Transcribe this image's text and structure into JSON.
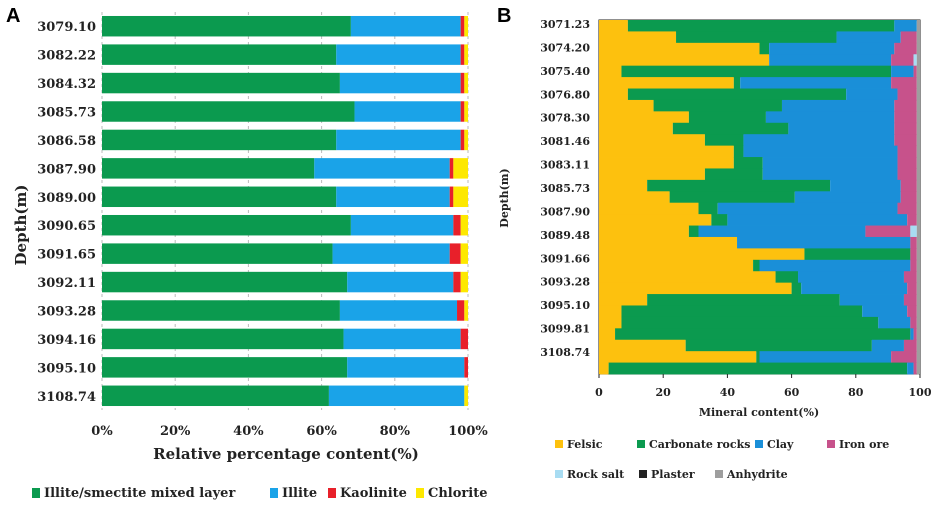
{
  "colors": {
    "green": "#0b9a4f",
    "blue": "#1aa3e8",
    "red": "#e8202a",
    "yellow": "#fde800",
    "orange": "#fdc10e",
    "clay_blue": "#1a8fd8",
    "pink": "#c7528b",
    "light_blue": "#a8dcf2",
    "dark": "#222222",
    "gray": "#9e9e9e"
  },
  "chart_data": [
    {
      "panel": "A",
      "type": "bar",
      "orientation": "horizontal",
      "stacked": true,
      "title": "",
      "xlabel": "Relative percentage content(%)",
      "ylabel": "Depth(m)",
      "xlim": [
        0,
        100
      ],
      "xticks": [
        "0%",
        "20%",
        "40%",
        "60%",
        "80%",
        "100%"
      ],
      "categories": [
        "3079.10",
        "3082.22",
        "3084.32",
        "3085.73",
        "3086.58",
        "3087.90",
        "3089.00",
        "3090.65",
        "3091.65",
        "3092.11",
        "3093.28",
        "3094.16",
        "3095.10",
        "3108.74"
      ],
      "series": [
        {
          "name": "Illite/smectite mixed layer",
          "color": "#0b9a4f",
          "values": [
            68,
            64,
            65,
            69,
            64,
            58,
            64,
            68,
            63,
            67,
            65,
            66,
            67,
            62
          ]
        },
        {
          "name": "Illite",
          "color": "#1aa3e8",
          "values": [
            30,
            34,
            33,
            29,
            34,
            37,
            31,
            28,
            32,
            29,
            32,
            32,
            32,
            37
          ]
        },
        {
          "name": "Kaolinite",
          "color": "#e8202a",
          "values": [
            1,
            1,
            1,
            1,
            1,
            1,
            1,
            2,
            3,
            2,
            2,
            2,
            1,
            0
          ]
        },
        {
          "name": "Chlorite",
          "color": "#fde800",
          "values": [
            1,
            1,
            1,
            1,
            1,
            4,
            4,
            2,
            2,
            2,
            1,
            0,
            0,
            1
          ]
        }
      ],
      "legend": "bottom"
    },
    {
      "panel": "B",
      "type": "bar",
      "orientation": "horizontal",
      "stacked": true,
      "title": "",
      "xlabel": "Mineral content(%)",
      "ylabel": "Depth(m)",
      "xlim": [
        0,
        100
      ],
      "xticks": [
        "0",
        "20",
        "40",
        "60",
        "80",
        "100"
      ],
      "ytick_labels": [
        "3071.23",
        "3074.20",
        "3075.40",
        "3076.80",
        "3078.30",
        "3081.46",
        "3083.11",
        "3085.73",
        "3087.90",
        "3089.48",
        "3091.66",
        "3093.28",
        "3095.10",
        "3099.81",
        "3108.74"
      ],
      "series_names": [
        "Felsic",
        "Carbonate rocks",
        "Clay",
        "Iron ore",
        "Rock salt",
        "Plaster",
        "Anhydrite"
      ],
      "series_colors": [
        "#fdc10e",
        "#0b9a4f",
        "#1a8fd8",
        "#c7528b",
        "#a8dcf2",
        "#222222",
        "#9e9e9e"
      ],
      "rows": [
        [
          9,
          83,
          7,
          0,
          0,
          0,
          1
        ],
        [
          24,
          50,
          20,
          5,
          0,
          0,
          1
        ],
        [
          50,
          3,
          39,
          7,
          0,
          0,
          1
        ],
        [
          53,
          0,
          38,
          7,
          1,
          0,
          1
        ],
        [
          7,
          84,
          7,
          1,
          0,
          0,
          1
        ],
        [
          42,
          2,
          47,
          8,
          0,
          0,
          1
        ],
        [
          9,
          68,
          16,
          6,
          0,
          0,
          1
        ],
        [
          17,
          40,
          35,
          7,
          0,
          0,
          1
        ],
        [
          28,
          24,
          40,
          7,
          0,
          0,
          1
        ],
        [
          23,
          36,
          33,
          7,
          0,
          0,
          1
        ],
        [
          33,
          12,
          47,
          7,
          0,
          0,
          1
        ],
        [
          42,
          3,
          48,
          6,
          0,
          0,
          1
        ],
        [
          42,
          9,
          42,
          6,
          0,
          0,
          1
        ],
        [
          33,
          18,
          42,
          6,
          0,
          0,
          1
        ],
        [
          15,
          57,
          22,
          5,
          0,
          0,
          1
        ],
        [
          22,
          39,
          33,
          5,
          0,
          0,
          1
        ],
        [
          31,
          6,
          56,
          6,
          0,
          0,
          1
        ],
        [
          35,
          5,
          56,
          3,
          0,
          0,
          1
        ],
        [
          28,
          3,
          52,
          14,
          2,
          0,
          1
        ],
        [
          43,
          0,
          54,
          2,
          0,
          0,
          1
        ],
        [
          64,
          33,
          0,
          2,
          0,
          0,
          1
        ],
        [
          48,
          2,
          47,
          2,
          0,
          0,
          1
        ],
        [
          55,
          7,
          33,
          4,
          0,
          0,
          1
        ],
        [
          60,
          3,
          33,
          3,
          0,
          0,
          1
        ],
        [
          15,
          60,
          20,
          4,
          0,
          0,
          1
        ],
        [
          7,
          75,
          14,
          3,
          0,
          0,
          1
        ],
        [
          7,
          80,
          10,
          2,
          0,
          0,
          1
        ],
        [
          5,
          92,
          1,
          1,
          0,
          0,
          1
        ],
        [
          27,
          58,
          10,
          4,
          0,
          0,
          1
        ],
        [
          49,
          1,
          41,
          8,
          0,
          0,
          1
        ],
        [
          3,
          93,
          2,
          1,
          0,
          0,
          1
        ]
      ],
      "legend": "bottom"
    }
  ],
  "panel_a": {
    "label": "A",
    "ylabel": "Depth(m)",
    "xlabel": "Relative percentage content(%)"
  },
  "panel_b": {
    "label": "B",
    "ylabel": "Depth(m)",
    "xlabel": "Mineral content(%)"
  }
}
